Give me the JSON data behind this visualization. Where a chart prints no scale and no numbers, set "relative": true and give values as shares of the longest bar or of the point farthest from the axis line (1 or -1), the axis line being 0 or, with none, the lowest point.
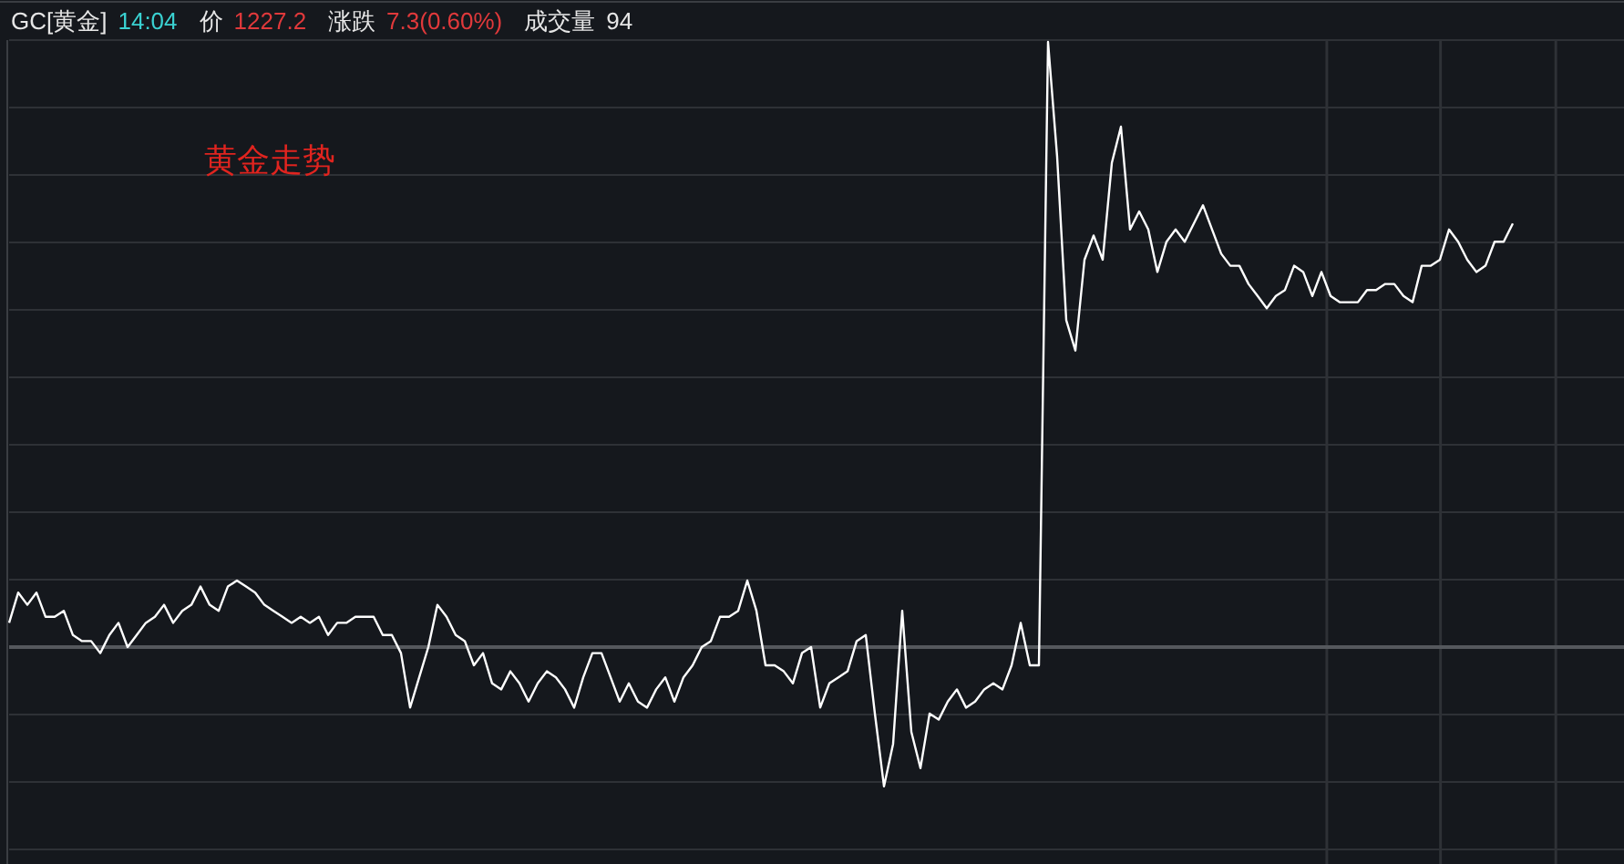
{
  "chart_data": {
    "type": "line",
    "relative": true,
    "title": "黄金走势",
    "annotations": [
      "GC[黄金]",
      "14:04",
      "价",
      "1227.2",
      "涨跌",
      "7.3(0.60%)",
      "成交量",
      "94"
    ],
    "categories": [
      null,
      null,
      null,
      null,
      null,
      null,
      null,
      null,
      null,
      null,
      null,
      null,
      null,
      null,
      null,
      null,
      null,
      null,
      null,
      null,
      null,
      null,
      null,
      null,
      null,
      null,
      null,
      null,
      null,
      null,
      null,
      null,
      null,
      null,
      null,
      null,
      null,
      null,
      null,
      null,
      null,
      null,
      null,
      null,
      null,
      null,
      null,
      null,
      null,
      null,
      null,
      null,
      null,
      null,
      null,
      null,
      null,
      null,
      null,
      null,
      null,
      null,
      null,
      null,
      null,
      null,
      null,
      null,
      null,
      null,
      null,
      null,
      null,
      null,
      null,
      null,
      null,
      null,
      null,
      null,
      null,
      null,
      null,
      null,
      null,
      null,
      null,
      null,
      null,
      null,
      null,
      null,
      null,
      null,
      null,
      null,
      null,
      null,
      null,
      null,
      null,
      null,
      null,
      null,
      null,
      null,
      null,
      null,
      null,
      null,
      null,
      null,
      null,
      null,
      null,
      null,
      null,
      null,
      null,
      null,
      null,
      null,
      null,
      null,
      null,
      null,
      null,
      null,
      null,
      null,
      null,
      null,
      null,
      null,
      null,
      null,
      null,
      null,
      null,
      null,
      null,
      null,
      null,
      null,
      null,
      null,
      null,
      null,
      null,
      null,
      null,
      null,
      null,
      null,
      null,
      null,
      null,
      null,
      null,
      null,
      null,
      null,
      null,
      null,
      null,
      null,
      null,
      null,
      null,
      null,
      null,
      null,
      null,
      null,
      null,
      null,
      null
    ],
    "series": [
      {
        "color": "#ffffff",
        "values": [
          0.04,
          0.09,
          0.07,
          0.09,
          0.05,
          0.05,
          0.06,
          0.02,
          0.01,
          0.01,
          -0.01,
          0.02,
          0.04,
          0.0,
          0.02,
          0.04,
          0.05,
          0.07,
          0.04,
          0.06,
          0.07,
          0.1,
          0.07,
          0.06,
          0.1,
          0.11,
          0.1,
          0.09,
          0.07,
          0.06,
          0.05,
          0.04,
          0.05,
          0.04,
          0.05,
          0.02,
          0.04,
          0.04,
          0.05,
          0.05,
          0.05,
          0.02,
          0.02,
          -0.01,
          -0.1,
          -0.05,
          0.0,
          0.07,
          0.05,
          0.02,
          0.01,
          -0.03,
          -0.01,
          -0.06,
          -0.07,
          -0.04,
          -0.06,
          -0.09,
          -0.06,
          -0.04,
          -0.05,
          -0.07,
          -0.1,
          -0.05,
          -0.01,
          -0.01,
          -0.05,
          -0.09,
          -0.06,
          -0.09,
          -0.1,
          -0.07,
          -0.05,
          -0.09,
          -0.05,
          -0.03,
          0.0,
          0.01,
          0.05,
          0.05,
          0.06,
          0.11,
          0.06,
          -0.03,
          -0.03,
          -0.04,
          -0.06,
          -0.01,
          0.0,
          -0.1,
          -0.06,
          -0.05,
          -0.04,
          0.01,
          0.02,
          -0.11,
          -0.23,
          -0.16,
          0.06,
          -0.14,
          -0.2,
          -0.11,
          -0.12,
          -0.09,
          -0.07,
          -0.1,
          -0.09,
          -0.07,
          -0.06,
          -0.07,
          -0.03,
          0.04,
          -0.03,
          -0.03,
          1.0,
          0.81,
          0.54,
          0.49,
          0.64,
          0.68,
          0.64,
          0.8,
          0.86,
          0.69,
          0.72,
          0.69,
          0.62,
          0.67,
          0.69,
          0.67,
          0.7,
          0.73,
          0.69,
          0.65,
          0.63,
          0.63,
          0.6,
          0.58,
          0.56,
          0.58,
          0.59,
          0.63,
          0.62,
          0.58,
          0.62,
          0.58,
          0.57,
          0.57,
          0.57,
          0.59,
          0.59,
          0.6,
          0.6,
          0.58,
          0.57,
          0.63,
          0.63,
          0.64,
          0.69,
          0.67,
          0.64,
          0.62,
          0.63,
          0.67,
          0.67,
          0.7,
          null,
          null,
          null,
          null,
          null,
          null,
          null,
          null,
          null,
          null,
          null
        ]
      }
    ],
    "grid": true
  }
}
